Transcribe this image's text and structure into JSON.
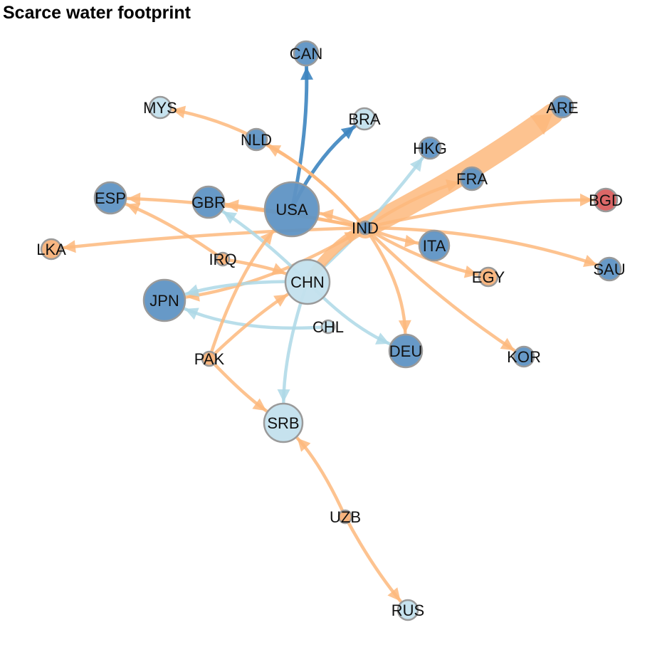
{
  "title": "Scarce water footprint",
  "colors": {
    "orange_edge": "#fdb97d",
    "lightblue_edge": "#add8e6",
    "darkblue_edge": "#3d85c0",
    "node_dark": "#5f93c4",
    "node_light": "#c3e0ed",
    "node_orange": "#f7b27a",
    "node_red": "#d95f5f",
    "node_stroke": "#9a9a9a"
  },
  "nodes": [
    {
      "id": "CAN",
      "color": "dark"
    },
    {
      "id": "MYS",
      "color": "light"
    },
    {
      "id": "BRA",
      "color": "light"
    },
    {
      "id": "ARE",
      "color": "dark"
    },
    {
      "id": "NLD",
      "color": "dark"
    },
    {
      "id": "HKG",
      "color": "dark"
    },
    {
      "id": "FRA",
      "color": "dark"
    },
    {
      "id": "ESP",
      "color": "dark"
    },
    {
      "id": "GBR",
      "color": "dark"
    },
    {
      "id": "USA",
      "color": "dark"
    },
    {
      "id": "BGD",
      "color": "red"
    },
    {
      "id": "IND",
      "color": "dark"
    },
    {
      "id": "LKA",
      "color": "orange"
    },
    {
      "id": "IRQ",
      "color": "orange"
    },
    {
      "id": "ITA",
      "color": "dark"
    },
    {
      "id": "SAU",
      "color": "dark"
    },
    {
      "id": "EGY",
      "color": "orange"
    },
    {
      "id": "CHN",
      "color": "light"
    },
    {
      "id": "JPN",
      "color": "dark"
    },
    {
      "id": "CHL",
      "color": "light"
    },
    {
      "id": "DEU",
      "color": "dark"
    },
    {
      "id": "KOR",
      "color": "dark"
    },
    {
      "id": "PAK",
      "color": "orange"
    },
    {
      "id": "SRB",
      "color": "light"
    },
    {
      "id": "UZB",
      "color": "orange"
    },
    {
      "id": "RUS",
      "color": "light"
    }
  ],
  "edges": [
    {
      "from": "USA",
      "to": "CAN",
      "type": "darkblue"
    },
    {
      "from": "USA",
      "to": "BRA",
      "type": "darkblue"
    },
    {
      "from": "IND",
      "to": "ARE",
      "type": "orange"
    },
    {
      "from": "IND",
      "to": "MYS",
      "type": "orange"
    },
    {
      "from": "IND",
      "to": "NLD",
      "type": "orange"
    },
    {
      "from": "IND",
      "to": "FRA",
      "type": "orange"
    },
    {
      "from": "IND",
      "to": "BGD",
      "type": "orange"
    },
    {
      "from": "IND",
      "to": "SAU",
      "type": "orange"
    },
    {
      "from": "IND",
      "to": "ESP",
      "type": "orange"
    },
    {
      "from": "IND",
      "to": "GBR",
      "type": "orange"
    },
    {
      "from": "IND",
      "to": "LKA",
      "type": "orange"
    },
    {
      "from": "IND",
      "to": "JPN",
      "type": "orange"
    },
    {
      "from": "IND",
      "to": "DEU",
      "type": "orange"
    },
    {
      "from": "IND",
      "to": "KOR",
      "type": "orange"
    },
    {
      "from": "IND",
      "to": "EGY",
      "type": "orange"
    },
    {
      "from": "IND",
      "to": "ITA",
      "type": "orange"
    },
    {
      "from": "IND",
      "to": "USA",
      "type": "orange"
    },
    {
      "from": "CHN",
      "to": "HKG",
      "type": "lightblue"
    },
    {
      "from": "CHN",
      "to": "GBR",
      "type": "lightblue"
    },
    {
      "from": "CHN",
      "to": "JPN",
      "type": "lightblue"
    },
    {
      "from": "CHN",
      "to": "DEU",
      "type": "lightblue"
    },
    {
      "from": "CHN",
      "to": "SRB",
      "type": "lightblue"
    },
    {
      "from": "CHL",
      "to": "JPN",
      "type": "lightblue"
    },
    {
      "from": "IRQ",
      "to": "ESP",
      "type": "orange"
    },
    {
      "from": "IRQ",
      "to": "CHN",
      "type": "orange"
    },
    {
      "from": "PAK",
      "to": "USA",
      "type": "orange"
    },
    {
      "from": "PAK",
      "to": "CHN",
      "type": "orange"
    },
    {
      "from": "PAK",
      "to": "SRB",
      "type": "orange"
    },
    {
      "from": "UZB",
      "to": "SRB",
      "type": "orange"
    },
    {
      "from": "UZB",
      "to": "RUS",
      "type": "orange"
    },
    {
      "from": "CHN",
      "to": "IND",
      "type": "orange"
    }
  ]
}
